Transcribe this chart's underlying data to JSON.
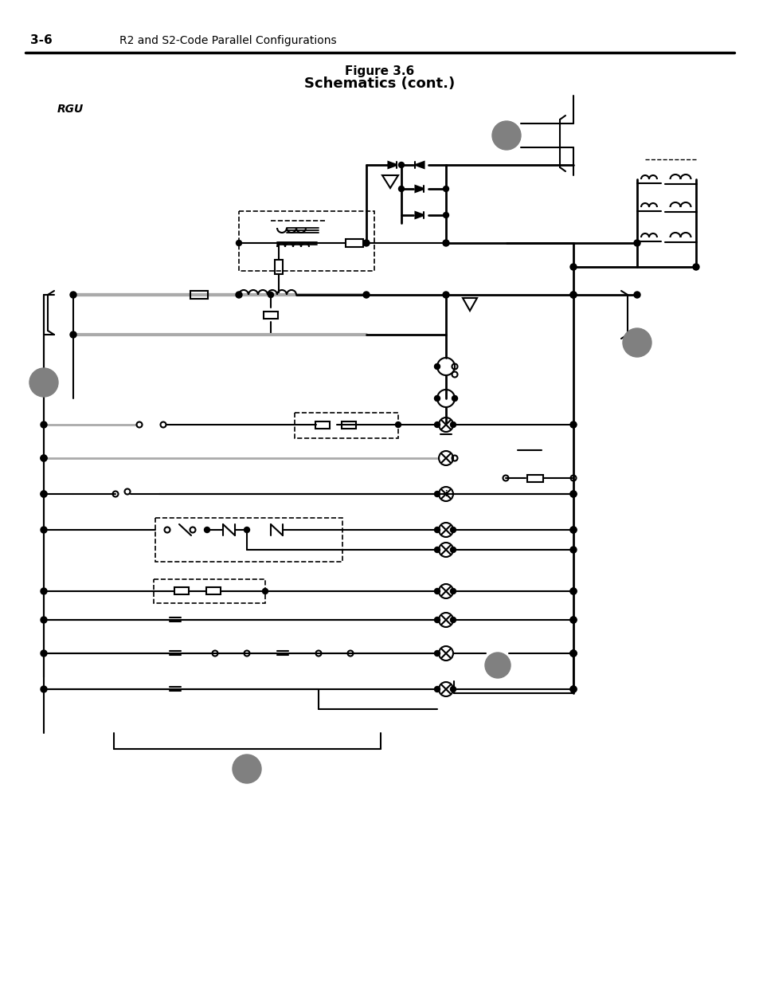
{
  "title_line1": "Figure 3.6",
  "title_line2": "Schematics (cont.)",
  "header_left": "3-6",
  "header_right": "R2 and S2-Code Parallel Configurations",
  "label_rgu": "RGU",
  "bg_color": "#ffffff",
  "line_color": "#000000",
  "gray_color": "#aaaaaa",
  "circle_fill": "#808080",
  "fig_width": 9.54,
  "fig_height": 12.35,
  "dpi": 100
}
